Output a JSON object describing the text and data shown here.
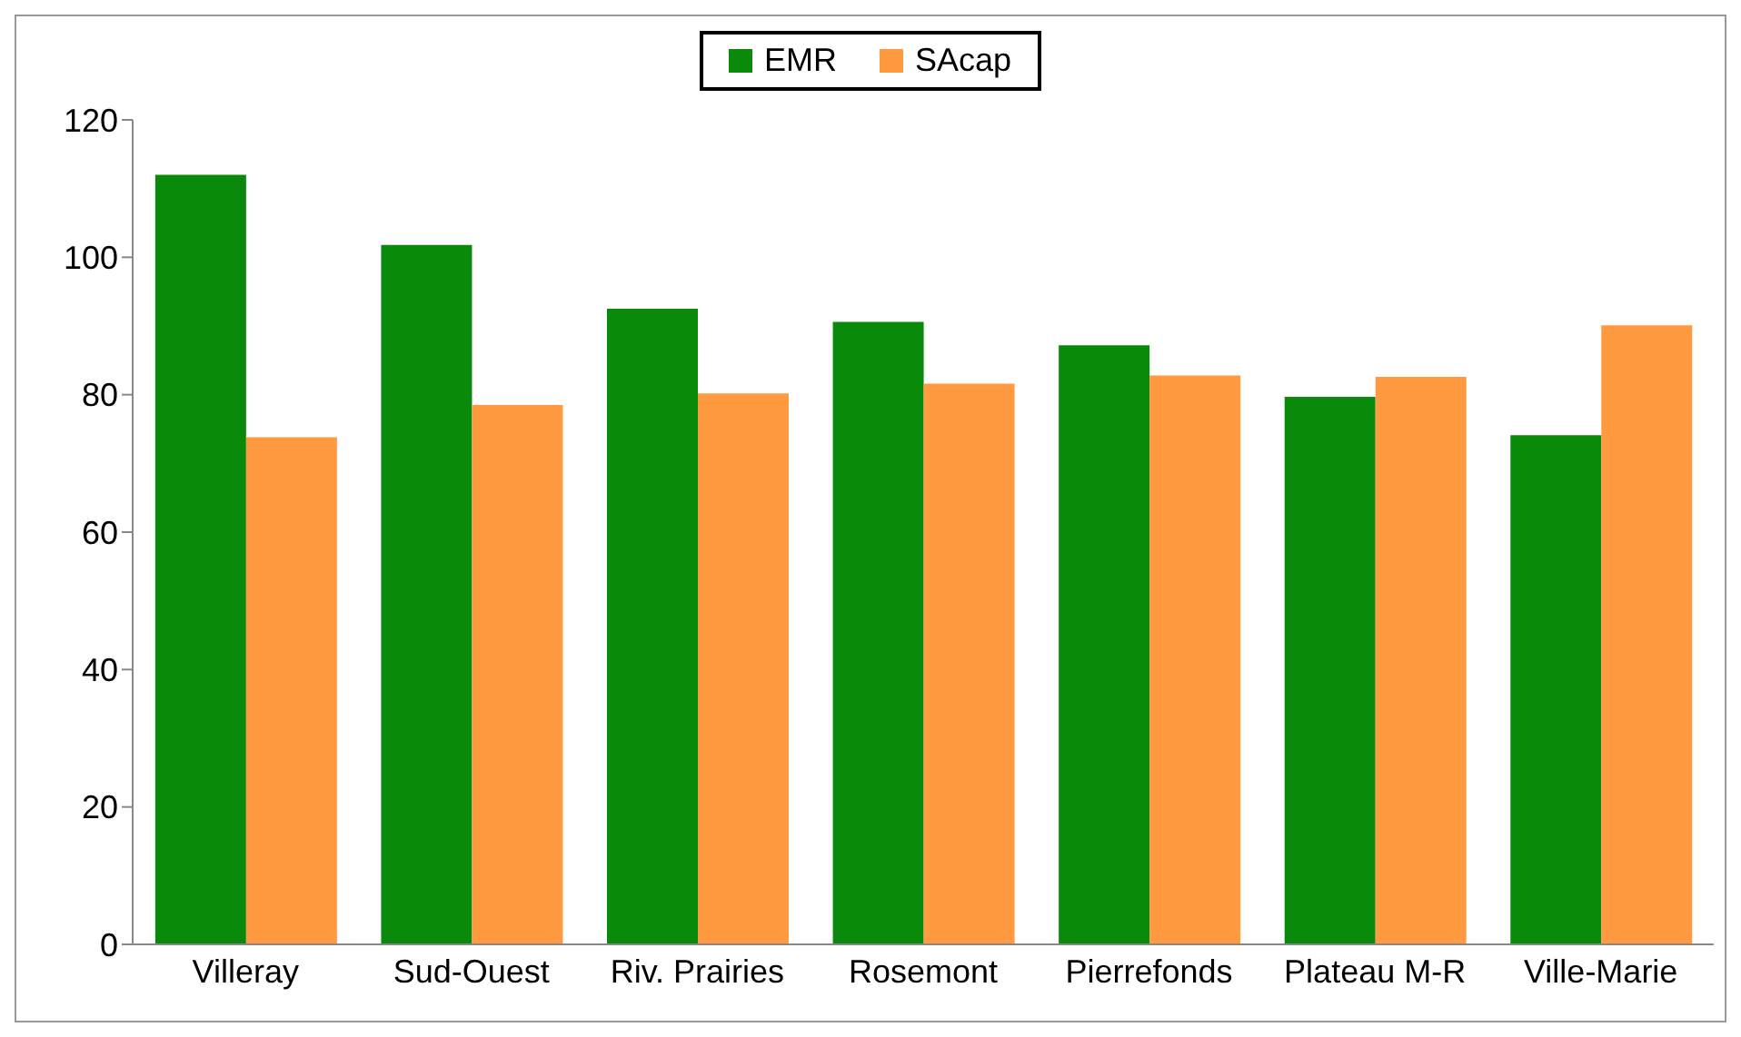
{
  "chart_data": {
    "type": "bar",
    "categories": [
      "Villeray",
      "Sud-Ouest",
      "Riv. Prairies",
      "Rosemont",
      "Pierrefonds",
      "Plateau M-R",
      "Ville-Marie"
    ],
    "series": [
      {
        "name": "EMR",
        "color": "#0a8a0a",
        "values": [
          112,
          101.8,
          92.5,
          90.6,
          87.2,
          79.7,
          74.1
        ]
      },
      {
        "name": "SAcap",
        "color": "#ff9a40",
        "values": [
          73.8,
          78.5,
          80.2,
          81.6,
          82.8,
          82.6,
          90.1
        ]
      }
    ],
    "ylim": [
      0,
      120
    ],
    "yticks": [
      0,
      20,
      40,
      60,
      80,
      100,
      120
    ],
    "grid": false,
    "legend": "top"
  }
}
